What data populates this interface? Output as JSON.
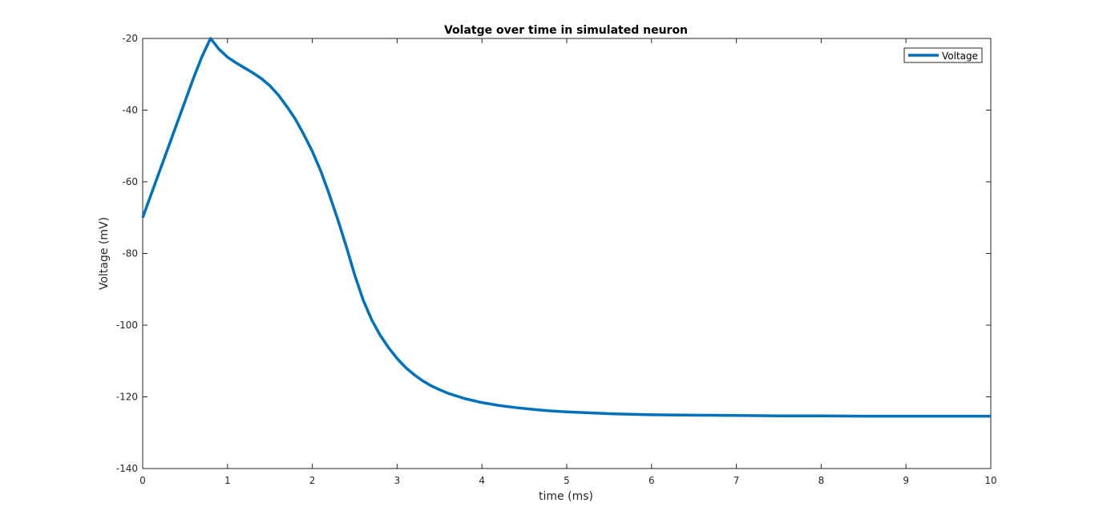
{
  "chart_data": {
    "type": "line",
    "title": "Volatge over time in simulated neuron",
    "xlabel": "time (ms)",
    "ylabel": "Voltage (mV)",
    "xlim": [
      0,
      10
    ],
    "ylim": [
      -140,
      -20
    ],
    "xticks": [
      0,
      1,
      2,
      3,
      4,
      5,
      6,
      7,
      8,
      9,
      10
    ],
    "yticks": [
      -140,
      -120,
      -100,
      -80,
      -60,
      -40,
      -20
    ],
    "xtick_labels": [
      "0",
      "1",
      "2",
      "3",
      "4",
      "5",
      "6",
      "7",
      "8",
      "9",
      "10"
    ],
    "ytick_labels": [
      "-140",
      "-120",
      "-100",
      "-80",
      "-60",
      "-40",
      "-20"
    ],
    "grid": false,
    "legend_position": "top-right",
    "series": [
      {
        "name": "Voltage",
        "color": "#0072BD",
        "x": [
          0,
          0.1,
          0.2,
          0.3,
          0.4,
          0.5,
          0.6,
          0.7,
          0.8,
          0.9,
          1.0,
          1.1,
          1.2,
          1.3,
          1.4,
          1.5,
          1.6,
          1.7,
          1.8,
          1.9,
          2.0,
          2.1,
          2.2,
          2.3,
          2.4,
          2.5,
          2.6,
          2.7,
          2.8,
          2.9,
          3.0,
          3.1,
          3.2,
          3.3,
          3.4,
          3.5,
          3.6,
          3.8,
          4.0,
          4.2,
          4.4,
          4.6,
          4.8,
          5.0,
          5.5,
          6.0,
          6.5,
          7.0,
          7.5,
          8.0,
          8.5,
          9.0,
          9.5,
          10.0
        ],
        "y": [
          -70,
          -63.5,
          -57,
          -50.5,
          -44,
          -37.5,
          -31,
          -25,
          -20,
          -23,
          -25.2,
          -26.8,
          -28.2,
          -29.6,
          -31.2,
          -33.2,
          -35.8,
          -39,
          -42.5,
          -46.8,
          -51.5,
          -57,
          -63.5,
          -70.5,
          -78,
          -86,
          -93,
          -98.5,
          -102.8,
          -106.3,
          -109.3,
          -111.8,
          -113.8,
          -115.5,
          -116.9,
          -118,
          -119,
          -120.5,
          -121.6,
          -122.4,
          -123,
          -123.5,
          -123.9,
          -124.2,
          -124.7,
          -125,
          -125.1,
          -125.2,
          -125.3,
          -125.3,
          -125.4,
          -125.4,
          -125.4,
          -125.4
        ]
      }
    ]
  }
}
